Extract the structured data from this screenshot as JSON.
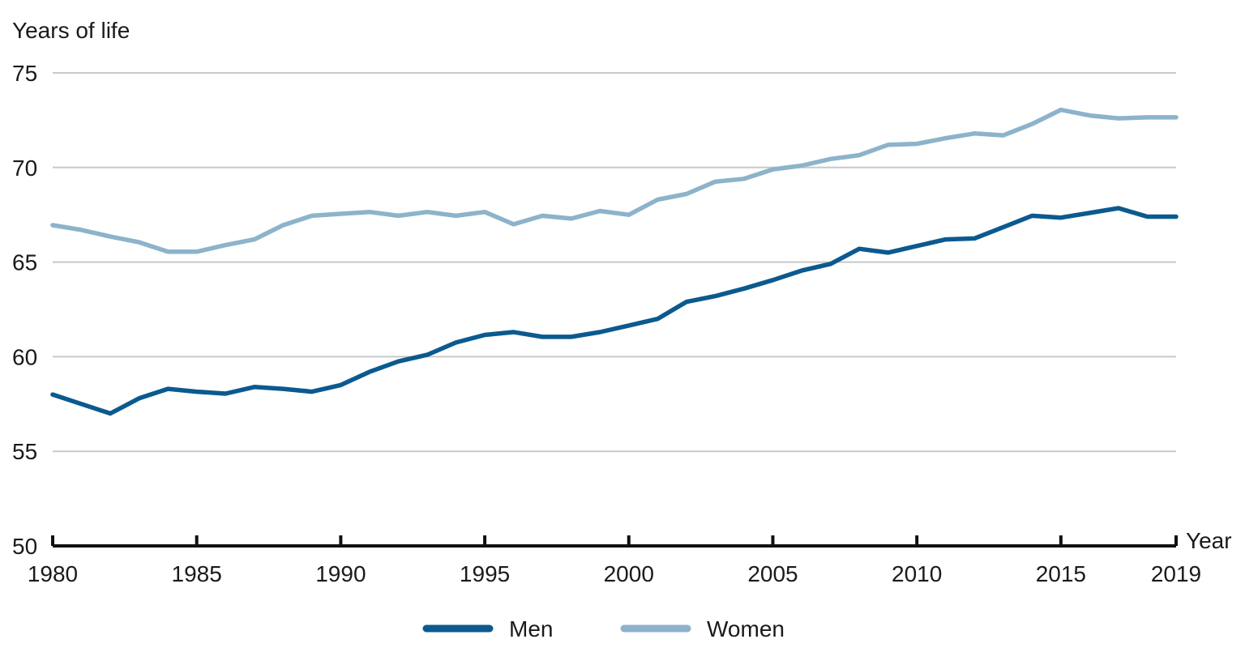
{
  "chart_data": {
    "type": "line",
    "ylabel": "Years of life",
    "xlabel": "Year",
    "ylim": [
      50,
      75
    ],
    "xlim": [
      1980,
      2019
    ],
    "yticks": [
      50,
      55,
      60,
      65,
      70,
      75
    ],
    "xticks": [
      1980,
      1985,
      1990,
      1995,
      2000,
      2005,
      2010,
      2015,
      2019
    ],
    "grid": "horizontal",
    "legend_position": "bottom",
    "x": [
      1980,
      1981,
      1982,
      1983,
      1984,
      1985,
      1986,
      1987,
      1988,
      1989,
      1990,
      1991,
      1992,
      1993,
      1994,
      1995,
      1996,
      1997,
      1998,
      1999,
      2000,
      2001,
      2002,
      2003,
      2004,
      2005,
      2006,
      2007,
      2008,
      2009,
      2010,
      2011,
      2012,
      2013,
      2014,
      2015,
      2016,
      2017,
      2018,
      2019
    ],
    "series": [
      {
        "name": "Men",
        "color": "#0b5a8f",
        "values": [
          58.0,
          57.5,
          57.0,
          57.8,
          58.3,
          58.15,
          58.05,
          58.4,
          58.3,
          58.15,
          58.5,
          59.2,
          59.75,
          60.1,
          60.75,
          61.15,
          61.3,
          61.05,
          61.05,
          61.3,
          61.65,
          62.0,
          62.9,
          63.2,
          63.6,
          64.05,
          64.55,
          64.9,
          65.7,
          65.5,
          65.85,
          66.2,
          66.25,
          66.85,
          67.45,
          67.35,
          67.6,
          67.85,
          67.4,
          67.4
        ]
      },
      {
        "name": "Women",
        "color": "#8db3cb",
        "values": [
          66.95,
          66.7,
          66.35,
          66.05,
          65.55,
          65.55,
          65.9,
          66.2,
          66.95,
          67.45,
          67.55,
          67.65,
          67.45,
          67.65,
          67.45,
          67.65,
          67.0,
          67.45,
          67.3,
          67.7,
          67.5,
          68.3,
          68.6,
          69.25,
          69.4,
          69.9,
          70.1,
          70.45,
          70.65,
          71.2,
          71.25,
          71.55,
          71.8,
          71.7,
          72.3,
          73.05,
          72.75,
          72.6,
          72.65,
          72.65
        ]
      }
    ]
  }
}
